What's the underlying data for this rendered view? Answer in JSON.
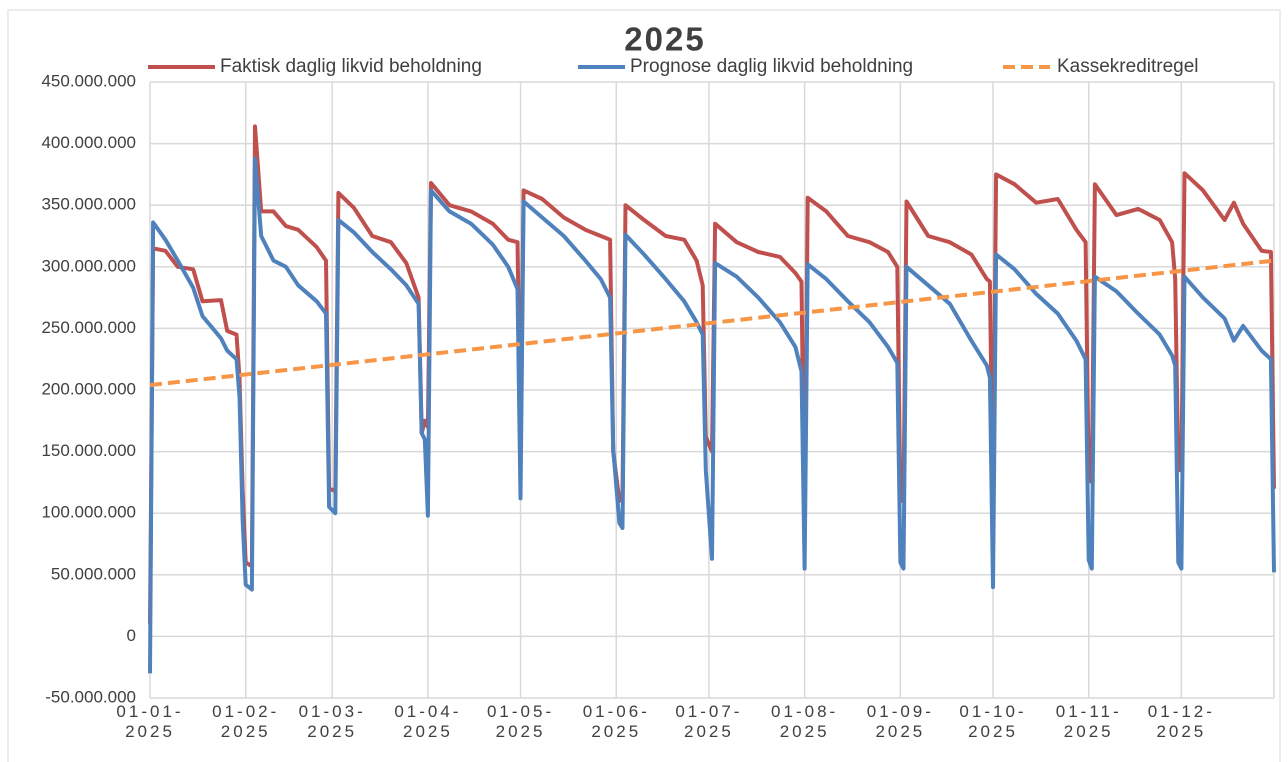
{
  "chart_data": {
    "type": "line",
    "title": "2025",
    "x": [
      "01-01-2025",
      "02-01-2025",
      "06-01-2025",
      "10-01-2025",
      "15-01-2025",
      "18-01-2025",
      "24-01-2025",
      "26-01-2025",
      "29-01-2025",
      "30-01-2025",
      "31-01-2025",
      "01-02-2025",
      "03-02-2025",
      "04-02-2025",
      "06-02-2025",
      "10-02-2025",
      "14-02-2025",
      "18-02-2025",
      "24-02-2025",
      "27-02-2025",
      "28-02-2025",
      "02-03-2025",
      "03-03-2025",
      "08-03-2025",
      "14-03-2025",
      "20-03-2025",
      "25-03-2025",
      "29-03-2025",
      "30-03-2025",
      "31-03-2025",
      "01-04-2025",
      "02-04-2025",
      "08-04-2025",
      "15-04-2025",
      "22-04-2025",
      "27-04-2025",
      "30-04-2025",
      "01-05-2025",
      "02-05-2025",
      "08-05-2025",
      "15-05-2025",
      "22-05-2025",
      "27-05-2025",
      "30-05-2025",
      "31-05-2025",
      "02-06-2025",
      "03-06-2025",
      "04-06-2025",
      "10-06-2025",
      "17-06-2025",
      "23-06-2025",
      "27-06-2025",
      "29-06-2025",
      "30-06-2025",
      "02-07-2025",
      "03-07-2025",
      "10-07-2025",
      "17-07-2025",
      "24-07-2025",
      "29-07-2025",
      "31-07-2025",
      "01-08-2025",
      "02-08-2025",
      "08-08-2025",
      "15-08-2025",
      "22-08-2025",
      "28-08-2025",
      "31-08-2025",
      "01-09-2025",
      "02-09-2025",
      "03-09-2025",
      "10-09-2025",
      "17-09-2025",
      "24-09-2025",
      "29-09-2025",
      "30-09-2025",
      "01-10-2025",
      "02-10-2025",
      "08-10-2025",
      "15-10-2025",
      "22-10-2025",
      "28-10-2025",
      "31-10-2025",
      "01-11-2025",
      "02-11-2025",
      "03-11-2025",
      "10-11-2025",
      "17-11-2025",
      "24-11-2025",
      "28-11-2025",
      "29-11-2025",
      "30-11-2025",
      "01-12-2025",
      "02-12-2025",
      "08-12-2025",
      "15-12-2025",
      "18-12-2025",
      "21-12-2025",
      "27-12-2025",
      "30-12-2025",
      "31-12-2025"
    ],
    "series": [
      {
        "name": "Faktisk daglig likvid beholdning",
        "color": "#c0504d",
        "values": [
          10000000,
          315000000,
          313000000,
          300000000,
          298000000,
          272000000,
          273000000,
          248000000,
          245000000,
          210000000,
          120000000,
          60000000,
          57000000,
          414000000,
          345000000,
          345000000,
          333000000,
          330000000,
          316000000,
          305000000,
          120000000,
          118000000,
          360000000,
          348000000,
          325000000,
          320000000,
          303000000,
          275000000,
          165000000,
          175000000,
          170000000,
          368000000,
          350000000,
          345000000,
          335000000,
          322000000,
          320000000,
          160000000,
          362000000,
          355000000,
          340000000,
          330000000,
          325000000,
          322000000,
          150000000,
          110000000,
          115000000,
          350000000,
          338000000,
          325000000,
          322000000,
          305000000,
          285000000,
          162000000,
          150000000,
          335000000,
          320000000,
          312000000,
          308000000,
          295000000,
          288000000,
          80000000,
          356000000,
          345000000,
          325000000,
          320000000,
          312000000,
          300000000,
          110000000,
          110000000,
          353000000,
          325000000,
          320000000,
          310000000,
          290000000,
          288000000,
          100000000,
          375000000,
          367000000,
          352000000,
          355000000,
          330000000,
          320000000,
          130000000,
          125000000,
          367000000,
          342000000,
          347000000,
          338000000,
          320000000,
          290000000,
          135000000,
          135000000,
          376000000,
          362000000,
          338000000,
          352000000,
          335000000,
          313000000,
          312000000,
          120000000
        ]
      },
      {
        "name": "Prognose daglig likvid beholdning",
        "color": "#4f81bd",
        "values": [
          -30000000,
          336000000,
          322000000,
          305000000,
          283000000,
          260000000,
          242000000,
          232000000,
          225000000,
          195000000,
          95000000,
          42000000,
          38000000,
          388000000,
          325000000,
          305000000,
          300000000,
          285000000,
          272000000,
          262000000,
          105000000,
          100000000,
          338000000,
          328000000,
          312000000,
          298000000,
          285000000,
          270000000,
          165000000,
          160000000,
          98000000,
          362000000,
          345000000,
          335000000,
          318000000,
          300000000,
          282000000,
          112000000,
          353000000,
          340000000,
          325000000,
          305000000,
          290000000,
          275000000,
          152000000,
          92000000,
          88000000,
          326000000,
          310000000,
          290000000,
          272000000,
          255000000,
          245000000,
          135000000,
          63000000,
          303000000,
          292000000,
          275000000,
          255000000,
          235000000,
          215000000,
          55000000,
          302000000,
          290000000,
          272000000,
          255000000,
          235000000,
          222000000,
          60000000,
          55000000,
          300000000,
          285000000,
          270000000,
          240000000,
          220000000,
          210000000,
          40000000,
          310000000,
          298000000,
          278000000,
          262000000,
          240000000,
          225000000,
          62000000,
          55000000,
          292000000,
          280000000,
          262000000,
          245000000,
          228000000,
          220000000,
          60000000,
          55000000,
          292000000,
          275000000,
          258000000,
          240000000,
          252000000,
          232000000,
          225000000,
          52000000
        ]
      },
      {
        "name": "Kassekreditregel",
        "color": "#f79646",
        "dashed": true,
        "x": [
          "01-01-2025",
          "31-12-2025"
        ],
        "values": [
          204000000,
          305000000
        ]
      }
    ],
    "xlim": [
      "01-01-2025",
      "31-12-2025"
    ],
    "xticks": [
      "01-01-2025",
      "01-02-2025",
      "01-03-2025",
      "01-04-2025",
      "01-05-2025",
      "01-06-2025",
      "01-07-2025",
      "01-08-2025",
      "01-09-2025",
      "01-10-2025",
      "01-11-2025",
      "01-12-2025"
    ],
    "ylim": [
      -50000000,
      450000000
    ],
    "yticks": [
      {
        "value": -50000000,
        "label": "-50.000.000"
      },
      0,
      {
        "value": 50000000,
        "label": "50.000.000"
      },
      {
        "value": 100000000,
        "label": "100.000.000"
      },
      {
        "value": 150000000,
        "label": "150.000.000"
      },
      {
        "value": 200000000,
        "label": "200.000.000"
      },
      {
        "value": 250000000,
        "label": "250.000.000"
      },
      {
        "value": 300000000,
        "label": "300.000.000"
      },
      {
        "value": 350000000,
        "label": "350.000.000"
      },
      {
        "value": 400000000,
        "label": "400.000.000"
      },
      {
        "value": 450000000,
        "label": "450.000.000"
      }
    ],
    "grid": true,
    "legend": "top"
  }
}
